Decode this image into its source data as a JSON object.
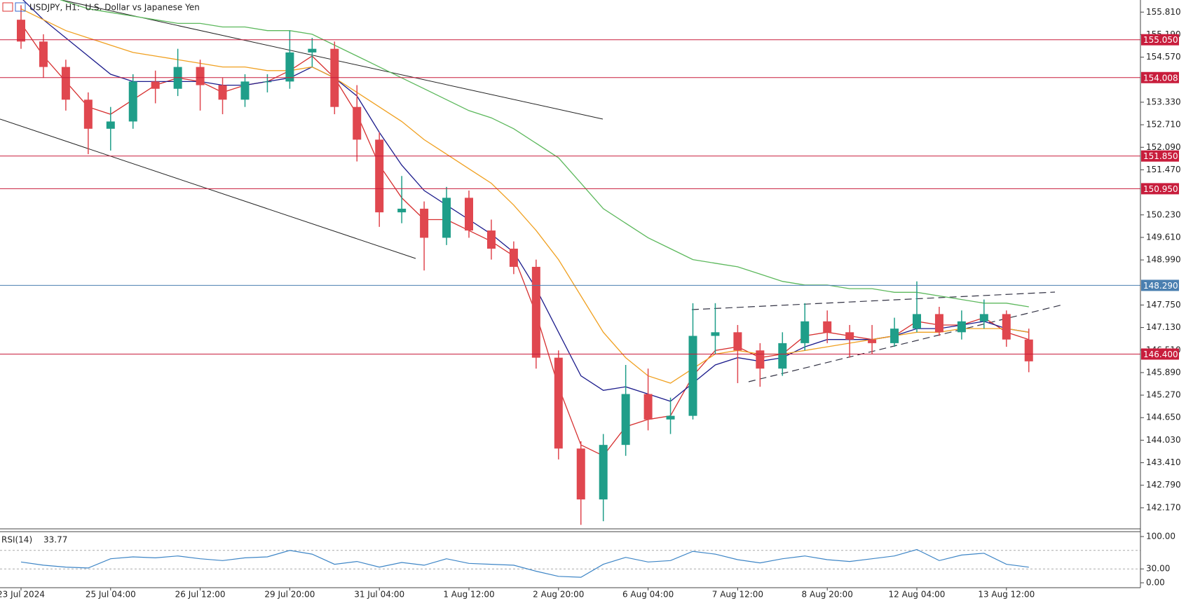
{
  "chart_data": [
    {
      "type": "candlestick",
      "title": "USDJPY, H1:  U.S. Dollar vs Japanese Yen",
      "categories": [
        "23 Jul 2024",
        null,
        null,
        null,
        "25 Jul 04:00",
        null,
        null,
        null,
        "26 Jul 12:00",
        null,
        null,
        null,
        "29 Jul 20:00",
        null,
        null,
        null,
        "31 Jul 04:00",
        null,
        null,
        null,
        "1 Aug 12:00",
        null,
        null,
        null,
        "2 Aug 20:00",
        null,
        null,
        null,
        "6 Aug 04:00",
        null,
        null,
        null,
        "7 Aug 12:00",
        null,
        null,
        null,
        "8 Aug 20:00",
        null,
        null,
        null,
        "12 Aug 04:00",
        null,
        null,
        null,
        "13 Aug 12:00",
        null
      ],
      "open": [
        155.6,
        155.0,
        154.3,
        153.4,
        152.6,
        152.8,
        153.9,
        153.7,
        154.3,
        153.8,
        153.4,
        153.9,
        153.9,
        154.7,
        154.8,
        153.2,
        152.3,
        150.3,
        150.4,
        149.6,
        150.7,
        149.8,
        149.3,
        148.8,
        146.3,
        143.8,
        142.4,
        143.9,
        145.3,
        144.6,
        144.7,
        146.9,
        147.0,
        146.5,
        146.0,
        146.7,
        147.3,
        147.0,
        146.8,
        146.7,
        147.1,
        147.5,
        147.0,
        147.3,
        147.5,
        146.8
      ],
      "high": [
        156.0,
        155.2,
        154.5,
        153.6,
        153.2,
        154.1,
        154.2,
        154.8,
        154.5,
        154.0,
        154.1,
        154.1,
        155.3,
        155.1,
        155.0,
        153.8,
        152.5,
        151.3,
        150.6,
        151.0,
        150.9,
        150.1,
        149.5,
        149.0,
        146.5,
        144.0,
        144.2,
        146.1,
        146.0,
        145.2,
        147.8,
        147.8,
        147.2,
        146.7,
        147.0,
        147.8,
        147.6,
        147.2,
        147.2,
        147.4,
        148.4,
        147.7,
        147.6,
        147.9,
        147.6,
        147.1
      ],
      "low": [
        154.8,
        154.0,
        153.1,
        151.9,
        152.0,
        152.6,
        153.3,
        153.5,
        153.1,
        153.0,
        153.2,
        153.6,
        153.7,
        154.3,
        153.0,
        151.7,
        149.9,
        150.0,
        148.7,
        149.4,
        149.6,
        149.0,
        148.6,
        146.0,
        143.5,
        141.7,
        141.8,
        143.6,
        144.3,
        144.2,
        144.6,
        146.4,
        145.6,
        145.5,
        145.8,
        146.5,
        146.7,
        146.3,
        146.4,
        146.6,
        147.0,
        146.9,
        146.8,
        147.1,
        146.6,
        145.9
      ],
      "close": [
        155.0,
        154.3,
        153.4,
        152.6,
        152.8,
        153.9,
        153.7,
        154.3,
        153.8,
        153.4,
        153.9,
        153.9,
        154.7,
        154.8,
        153.2,
        152.3,
        150.3,
        150.4,
        149.6,
        150.7,
        149.8,
        149.3,
        148.8,
        146.3,
        143.8,
        142.4,
        143.9,
        145.3,
        144.6,
        144.7,
        146.9,
        147.0,
        146.5,
        146.0,
        146.7,
        147.3,
        147.0,
        146.8,
        146.7,
        147.1,
        147.5,
        147.0,
        147.3,
        147.5,
        146.8,
        146.2
      ],
      "up_color": "#1f9e89",
      "down_color": "#e0474f",
      "overlays": [
        {
          "color": "#d62f2f",
          "values": [
            155.5,
            154.6,
            153.9,
            153.2,
            153.0,
            153.4,
            153.8,
            154.0,
            153.9,
            153.6,
            153.8,
            153.9,
            154.2,
            154.6,
            154.0,
            153.0,
            151.6,
            150.7,
            150.1,
            150.1,
            149.8,
            149.5,
            149.1,
            147.5,
            145.5,
            143.9,
            143.6,
            144.4,
            144.6,
            144.7,
            145.8,
            146.5,
            146.6,
            146.3,
            146.4,
            146.9,
            147.0,
            146.9,
            146.8,
            146.9,
            147.3,
            147.2,
            147.2,
            147.4,
            147.0,
            146.8
          ]
        },
        {
          "color": "#1c1c8c",
          "values": [
            156.2,
            155.6,
            155.1,
            154.6,
            154.1,
            153.9,
            153.9,
            153.9,
            153.9,
            153.8,
            153.8,
            153.9,
            154.0,
            154.3,
            154.0,
            153.5,
            152.5,
            151.6,
            150.9,
            150.5,
            150.1,
            149.7,
            149.2,
            148.2,
            147.0,
            145.8,
            145.4,
            145.5,
            145.3,
            145.1,
            145.6,
            146.1,
            146.3,
            146.2,
            146.3,
            146.6,
            146.8,
            146.8,
            146.8,
            146.9,
            147.1,
            147.1,
            147.2,
            147.3,
            147.1,
            147.0
          ]
        },
        {
          "color": "#f0a020",
          "values": [
            155.9,
            155.6,
            155.3,
            155.1,
            154.9,
            154.7,
            154.6,
            154.5,
            154.4,
            154.3,
            154.3,
            154.2,
            154.2,
            154.3,
            154.0,
            153.6,
            153.2,
            152.8,
            152.3,
            151.9,
            151.5,
            151.1,
            150.5,
            149.8,
            149.0,
            148.0,
            147.0,
            146.3,
            145.8,
            145.6,
            146.0,
            146.4,
            146.5,
            146.4,
            146.4,
            146.5,
            146.6,
            146.7,
            146.8,
            146.9,
            147.0,
            147.0,
            147.1,
            147.1,
            147.1,
            147.0
          ]
        },
        {
          "color": "#5cb85c",
          "values": [
            156.6,
            156.3,
            156.1,
            155.9,
            155.8,
            155.7,
            155.6,
            155.5,
            155.5,
            155.4,
            155.4,
            155.3,
            155.3,
            155.2,
            154.9,
            154.6,
            154.3,
            154.0,
            153.7,
            153.4,
            153.1,
            152.9,
            152.6,
            152.2,
            151.8,
            151.1,
            150.4,
            150.0,
            149.6,
            149.3,
            149.0,
            148.9,
            148.8,
            148.6,
            148.4,
            148.3,
            148.3,
            148.2,
            148.2,
            148.1,
            148.1,
            148.0,
            147.9,
            147.8,
            147.8,
            147.7
          ]
        }
      ],
      "levels": [
        {
          "value": 155.05,
          "label": "155.050",
          "color": "#c81d3c"
        },
        {
          "value": 154.008,
          "label": "154.008",
          "color": "#c81d3c"
        },
        {
          "value": 151.85,
          "label": "151.850",
          "color": "#c81d3c"
        },
        {
          "value": 150.95,
          "label": "150.950",
          "color": "#c81d3c"
        },
        {
          "value": 148.29,
          "label": "148.290",
          "color": "#4a7fb0"
        },
        {
          "value": 146.4,
          "label": "146.400",
          "color": "#c81d3c"
        }
      ],
      "ylim": [
        141.59,
        156.143
      ],
      "yticks": [
        {
          "value": 155.81,
          "label": "155.810"
        },
        {
          "value": 155.19,
          "label": "155.190"
        },
        {
          "value": 154.57,
          "label": "154.570"
        },
        {
          "value": 153.33,
          "label": "153.330"
        },
        {
          "value": 152.71,
          "label": "152.710"
        },
        {
          "value": 152.09,
          "label": "152.090"
        },
        {
          "value": 151.47,
          "label": "151.470"
        },
        {
          "value": 150.23,
          "label": "150.230"
        },
        {
          "value": 149.61,
          "label": "149.610"
        },
        {
          "value": 148.99,
          "label": "148.990"
        },
        {
          "value": 147.75,
          "label": "147.750"
        },
        {
          "value": 147.13,
          "label": "147.130"
        },
        {
          "value": 146.51,
          "label": "146.510"
        },
        {
          "value": 145.89,
          "label": "145.890"
        },
        {
          "value": 145.27,
          "label": "145.270"
        },
        {
          "value": 144.65,
          "label": "144.650"
        },
        {
          "value": 144.03,
          "label": "144.030"
        },
        {
          "value": 143.41,
          "label": "143.410"
        },
        {
          "value": 142.79,
          "label": "142.790"
        },
        {
          "value": 142.17,
          "label": "142.170"
        }
      ]
    },
    {
      "type": "line",
      "title": "RSI(14)",
      "color": "#3d85c6",
      "values": [
        45,
        38,
        34,
        32,
        52,
        56,
        54,
        58,
        52,
        48,
        54,
        56,
        70,
        62,
        40,
        46,
        34,
        44,
        38,
        52,
        42,
        40,
        38,
        25,
        14,
        12,
        40,
        55,
        45,
        48,
        68,
        62,
        50,
        43,
        52,
        58,
        50,
        46,
        52,
        58,
        72,
        48,
        60,
        64,
        40,
        33.77
      ],
      "levels": [
        70,
        30
      ],
      "ylim": [
        -10.6,
        110.6
      ],
      "yticks": [
        {
          "value": 100,
          "label": "100.00"
        },
        {
          "value": 30,
          "label": "30.00"
        },
        {
          "value": 0,
          "label": "0.00"
        }
      ]
    }
  ]
}
